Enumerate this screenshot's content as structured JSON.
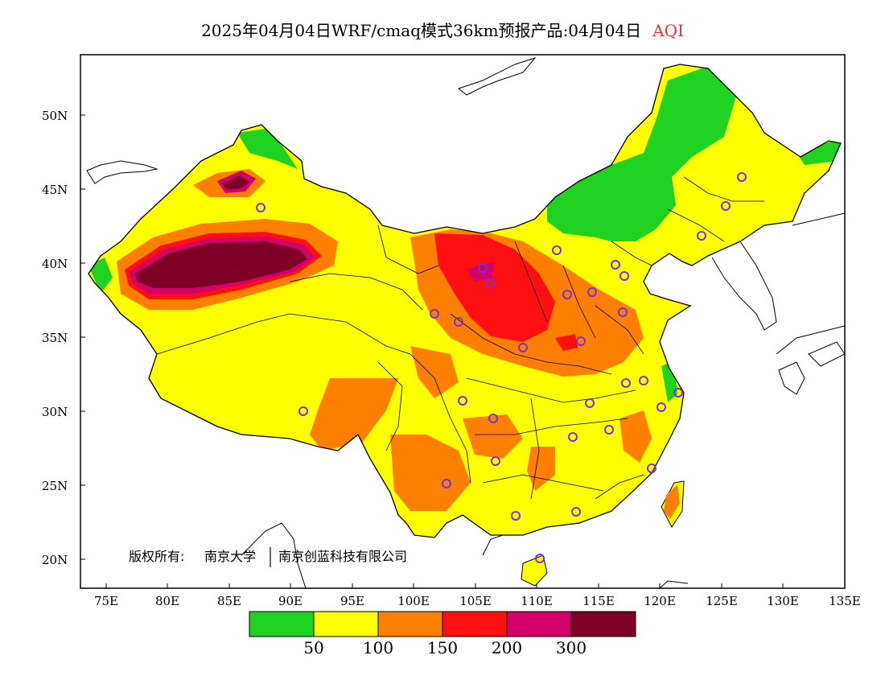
{
  "title": {
    "main": "2025年04月04日WRF/cmaq模式36km预报产品:04月04日",
    "pollutant": "AQI"
  },
  "axes": {
    "lat_labels": [
      "50N",
      "45N",
      "40N",
      "35N",
      "30N",
      "25N",
      "20N"
    ],
    "lon_labels": [
      "75E",
      "80E",
      "85E",
      "90E",
      "95E",
      "100E",
      "105E",
      "110E",
      "115E",
      "120E",
      "125E",
      "130E",
      "135E"
    ]
  },
  "colorbar": {
    "colors": [
      "#1fd21f",
      "#ffff00",
      "#ff8000",
      "#ff1010",
      "#d4006a",
      "#7f0026"
    ],
    "labels": [
      "50",
      "100",
      "150",
      "200",
      "300"
    ]
  },
  "copyright": {
    "owner_label": "版权所有:",
    "org1": "南京大学",
    "org2": "南京创蓝科技有限公司"
  },
  "legend_meaning": {
    "green": "0-50",
    "yellow": "50-100",
    "orange": "100-150",
    "red": "150-200",
    "purple": "200-300",
    "maroon": ">300"
  }
}
